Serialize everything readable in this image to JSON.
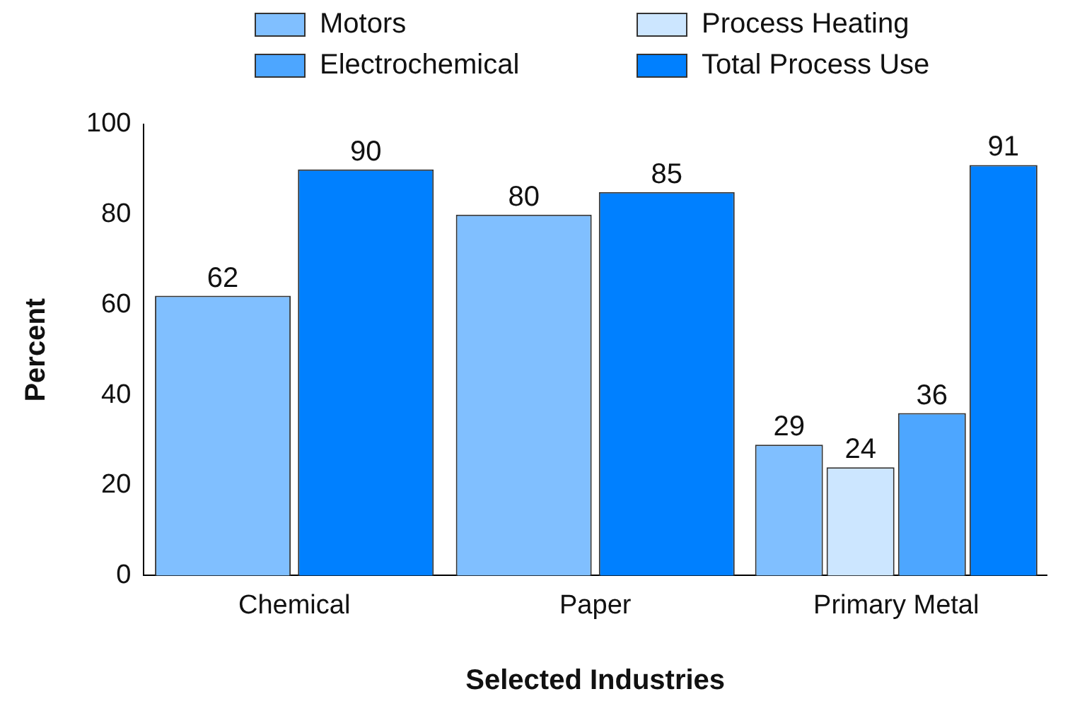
{
  "chart_data": {
    "type": "bar",
    "xlabel": "Selected Industries",
    "ylabel": "Percent",
    "categories": [
      "Chemical",
      "Paper",
      "Primary Metal"
    ],
    "series": [
      {
        "name": "Motors",
        "color": "#80bfff",
        "values": [
          62,
          80,
          29
        ]
      },
      {
        "name": "Process Heating",
        "color": "#cce6ff",
        "values": [
          null,
          null,
          24
        ]
      },
      {
        "name": "Electrochemical",
        "color": "#4da6ff",
        "values": [
          null,
          null,
          36
        ]
      },
      {
        "name": "Total Process Use",
        "color": "#0080ff",
        "values": [
          90,
          85,
          91
        ]
      }
    ],
    "ylim": [
      0,
      100
    ],
    "yticks": [
      0,
      20,
      40,
      60,
      80,
      100
    ],
    "grid": false,
    "legend": "top",
    "data_labels": true
  }
}
